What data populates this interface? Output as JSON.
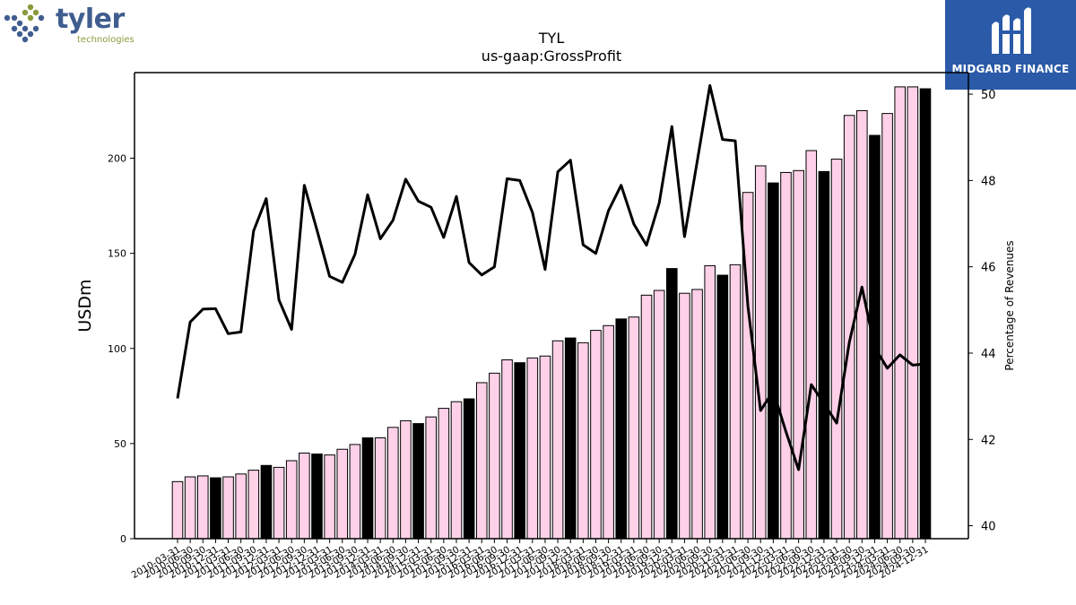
{
  "header": {
    "left_logo_word": "tyler",
    "left_logo_sub": "technologies",
    "right_logo_text": "MIDGARD FINANCE"
  },
  "chart_data": {
    "type": "bar",
    "title": "TYL",
    "subtitle": "us-gaap:GrossProfit",
    "ylabel": "USDm",
    "y2label": "Percentage of Revenues",
    "ylim": [
      0,
      245
    ],
    "y2lim": [
      39.7,
      50.5
    ],
    "yticks": [
      0,
      50,
      100,
      150,
      200
    ],
    "y2ticks": [
      40,
      42,
      44,
      46,
      48,
      50
    ],
    "colors": {
      "quarter_bar": "#ffd1e8",
      "annual_bar": "#000000",
      "line": "#000000",
      "edge": "#000000"
    },
    "categories": [
      "2010-03-31",
      "2010-06-30",
      "2010-09-30",
      "2010-12-31",
      "2011-03-31",
      "2011-06-30",
      "2011-09-30",
      "2011-12-31",
      "2012-03-31",
      "2012-06-30",
      "2012-09-30",
      "2012-12-31",
      "2013-03-31",
      "2013-06-30",
      "2013-09-30",
      "2013-12-31",
      "2014-03-31",
      "2014-06-30",
      "2014-09-30",
      "2014-12-31",
      "2015-03-31",
      "2015-06-30",
      "2015-09-30",
      "2015-12-31",
      "2016-03-31",
      "2016-06-30",
      "2016-09-30",
      "2016-12-31",
      "2017-03-31",
      "2017-06-30",
      "2017-09-30",
      "2017-12-31",
      "2018-03-31",
      "2018-06-30",
      "2018-09-30",
      "2018-12-31",
      "2019-03-31",
      "2019-06-30",
      "2019-09-30",
      "2019-12-31",
      "2020-03-31",
      "2020-06-30",
      "2020-09-30",
      "2020-12-31",
      "2021-03-31",
      "2021-06-30",
      "2021-09-30",
      "2021-12-31",
      "2022-03-31",
      "2022-06-30",
      "2022-09-30",
      "2022-12-31",
      "2023-03-31",
      "2023-06-30",
      "2023-09-30",
      "2023-12-31",
      "2024-03-31",
      "2024-06-30",
      "2024-09-30",
      "2024-12-31"
    ],
    "series": [
      {
        "kind": "bar",
        "values": [
          30,
          32.5,
          33,
          32,
          32.5,
          34,
          36,
          38.5,
          37.5,
          41,
          45,
          44.5,
          44,
          47,
          49.5,
          53,
          53,
          58.5,
          62,
          60.5,
          64,
          68.5,
          72,
          73.5,
          82,
          87,
          94,
          92.5,
          95,
          96,
          104,
          105.5,
          103,
          109.5,
          112,
          115.5,
          116.5,
          128,
          130.5,
          142,
          129,
          131,
          143.5,
          138.5,
          144,
          182,
          196,
          187,
          192.5,
          193.5,
          204,
          193,
          199.5,
          222.5,
          225,
          212,
          223.5,
          237.5,
          237.5,
          236.5
        ],
        "annual": [
          false,
          false,
          false,
          true,
          false,
          false,
          false,
          true,
          false,
          false,
          false,
          true,
          false,
          false,
          false,
          true,
          false,
          false,
          false,
          true,
          false,
          false,
          false,
          true,
          false,
          false,
          false,
          true,
          false,
          false,
          false,
          true,
          false,
          false,
          false,
          true,
          false,
          false,
          false,
          true,
          false,
          false,
          false,
          true,
          false,
          false,
          false,
          true,
          false,
          false,
          false,
          true,
          false,
          false,
          false,
          true,
          false,
          false,
          false,
          true
        ]
      },
      {
        "kind": "line",
        "axis": "right",
        "values": [
          42.95,
          44.72,
          45.02,
          45.03,
          44.45,
          44.49,
          46.83,
          47.58,
          45.23,
          44.55,
          47.89,
          46.85,
          45.78,
          45.64,
          46.29,
          47.67,
          46.65,
          47.08,
          48.03,
          47.52,
          47.38,
          46.68,
          47.63,
          46.1,
          45.81,
          46,
          48.04,
          48.0,
          47.26,
          45.94,
          48.2,
          48.47,
          46.51,
          46.31,
          47.3,
          47.89,
          46.99,
          46.5,
          47.48,
          49.25,
          46.7,
          48.45,
          50.2,
          48.95,
          48.92,
          45.09,
          42.67,
          43.12,
          42.18,
          41.3,
          43.27,
          42.83,
          42.38,
          44.25,
          45.53,
          44.13,
          43.65,
          43.96,
          43.72,
          43.75
        ]
      }
    ]
  }
}
